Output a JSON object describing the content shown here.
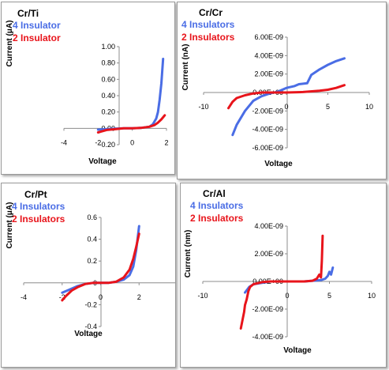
{
  "colors": {
    "series_blue": "#4a6de5",
    "series_red": "#e8141b",
    "axis": "#8c8c8c"
  },
  "chart_data": [
    {
      "type": "line",
      "title": "Cr/Ti",
      "xlabel": "Voltage",
      "ylabel": "Current (μA)",
      "xlim": [
        -4,
        2
      ],
      "ylim": [
        -0.2,
        1.0
      ],
      "x_ticks": [
        "-4",
        "-2",
        "0",
        "2"
      ],
      "y_ticks": [
        "1.00",
        "0.80",
        "0.60",
        "0.40",
        "0.20",
        "0.00",
        "-0.20"
      ],
      "grid": false,
      "series": [
        {
          "name": "4 Insulator",
          "color": "#4a6de5",
          "x": [
            -2.0,
            -1.5,
            -1.0,
            -0.5,
            0.0,
            0.5,
            1.0,
            1.2,
            1.4,
            1.5,
            1.6,
            1.7,
            1.8
          ],
          "y": [
            -0.015,
            -0.01,
            -0.005,
            0.0,
            0.0,
            0.005,
            0.02,
            0.05,
            0.12,
            0.2,
            0.35,
            0.55,
            0.85
          ]
        },
        {
          "name": "2 Insulator",
          "color": "#e8141b",
          "x": [
            -2.0,
            -1.5,
            -1.0,
            -0.5,
            0.0,
            0.5,
            1.0,
            1.3,
            1.5,
            1.7,
            1.9
          ],
          "y": [
            -0.05,
            -0.02,
            -0.01,
            0.0,
            0.0,
            0.005,
            0.02,
            0.04,
            0.07,
            0.11,
            0.16
          ]
        }
      ]
    },
    {
      "type": "line",
      "title": "Cr/Cr",
      "xlabel": "Voltage",
      "ylabel": "Current (nA)",
      "xlim": [
        -10,
        10
      ],
      "ylim": [
        -6e-09,
        6e-09
      ],
      "x_ticks": [
        "-10",
        "0",
        "5",
        "10"
      ],
      "y_ticks": [
        "6.00E-09",
        "4.00E-09",
        "2.00E-09",
        "0.00E+00",
        "-2.00E-09",
        "-4.00E-09",
        "-6.00E-09"
      ],
      "grid": false,
      "series": [
        {
          "name": "4 Insulators",
          "color": "#4a6de5",
          "x": [
            -6.5,
            -6.0,
            -5.0,
            -4.0,
            -3.0,
            -2.0,
            -1.0,
            0.0,
            1.0,
            1.5,
            2.5,
            3.0,
            4.0,
            5.0,
            6.0,
            7.0
          ],
          "y": [
            -4.6e-09,
            -3.5e-09,
            -2e-09,
            -9e-10,
            -4e-10,
            -1e-10,
            1e-10,
            5e-10,
            7e-10,
            9e-10,
            1e-09,
            1.9e-09,
            2.5e-09,
            3e-09,
            3.4e-09,
            3.7e-09
          ]
        },
        {
          "name": "2 Insulators",
          "color": "#e8141b",
          "x": [
            -7.0,
            -6.5,
            -6.0,
            -5.0,
            -4.0,
            -3.0,
            -2.0,
            0.0,
            2.0,
            4.0,
            5.0,
            6.0,
            7.0
          ],
          "y": [
            -1.7e-09,
            -1e-09,
            -6e-10,
            -3e-10,
            -1e-10,
            0.0,
            0.0,
            0.0,
            5e-11,
            2e-10,
            3e-10,
            5e-10,
            8e-10
          ]
        }
      ]
    },
    {
      "type": "line",
      "title": "Cr/Pt",
      "xlabel": "Voltage",
      "ylabel": "Current (μA)",
      "xlim": [
        -4,
        4
      ],
      "ylim": [
        -0.4,
        0.6
      ],
      "x_ticks": [
        "-4",
        "-2",
        "0",
        "2",
        "4"
      ],
      "y_ticks": [
        "0.6",
        "0.4",
        "0.2",
        "0",
        "-0.2",
        "-0.4"
      ],
      "grid": false,
      "series": [
        {
          "name": "4 Insulators",
          "color": "#4a6de5",
          "x": [
            -2.0,
            -1.6,
            -1.2,
            -0.8,
            -0.4,
            0.0,
            0.4,
            0.8,
            1.2,
            1.5,
            1.7,
            1.85,
            2.0
          ],
          "y": [
            -0.09,
            -0.06,
            -0.03,
            -0.01,
            0.0,
            0.0,
            0.0,
            0.01,
            0.03,
            0.07,
            0.15,
            0.3,
            0.52
          ]
        },
        {
          "name": "2 Insulators",
          "color": "#e8141b",
          "x": [
            -2.0,
            -1.8,
            -1.5,
            -1.2,
            -0.8,
            -0.4,
            0.0,
            0.4,
            0.8,
            1.2,
            1.5,
            1.7,
            1.85,
            2.0
          ],
          "y": [
            -0.16,
            -0.12,
            -0.07,
            -0.04,
            -0.01,
            0.0,
            0.0,
            0.0,
            0.01,
            0.05,
            0.12,
            0.22,
            0.33,
            0.45
          ]
        }
      ]
    },
    {
      "type": "line",
      "title": "Cr/Al",
      "xlabel": "Voltage",
      "ylabel": "Current (nm)",
      "xlim": [
        -10,
        10
      ],
      "ylim": [
        -4e-09,
        4e-09
      ],
      "x_ticks": [
        "-10",
        "0",
        "5",
        "10"
      ],
      "y_ticks": [
        "4.00E-09",
        "2.00E-09",
        "0.00E+00",
        "-2.00E-09",
        "-4.00E-09"
      ],
      "grid": false,
      "series": [
        {
          "name": "4 Insulators",
          "color": "#4a6de5",
          "x": [
            -5.0,
            -4.5,
            -4.0,
            -3.0,
            -2.0,
            0.0,
            2.0,
            3.0,
            4.0,
            4.5,
            4.8,
            5.0,
            5.2,
            5.4
          ],
          "y": [
            -8e-10,
            -4e-10,
            -2e-10,
            -1e-10,
            0.0,
            0.0,
            0.0,
            5e-11,
            1e-10,
            2e-10,
            4e-10,
            7e-10,
            5e-10,
            1e-09
          ]
        },
        {
          "name": "2 Insulators",
          "color": "#e8141b",
          "x": [
            -5.5,
            -5.3,
            -5.1,
            -5.0,
            -4.8,
            -4.6,
            -4.4,
            -4.0,
            -3.0,
            -2.0,
            0.0,
            2.0,
            3.0,
            3.5,
            3.8,
            4.0,
            4.1,
            4.2
          ],
          "y": [
            -3.4e-09,
            -2.8e-09,
            -2.2e-09,
            -1.7e-09,
            -1.3e-09,
            -7e-10,
            -4e-10,
            -2e-10,
            -5e-11,
            0.0,
            0.0,
            0.0,
            5e-11,
            2e-10,
            5e-10,
            3e-10,
            1.5e-09,
            3.3e-09
          ]
        }
      ]
    }
  ]
}
